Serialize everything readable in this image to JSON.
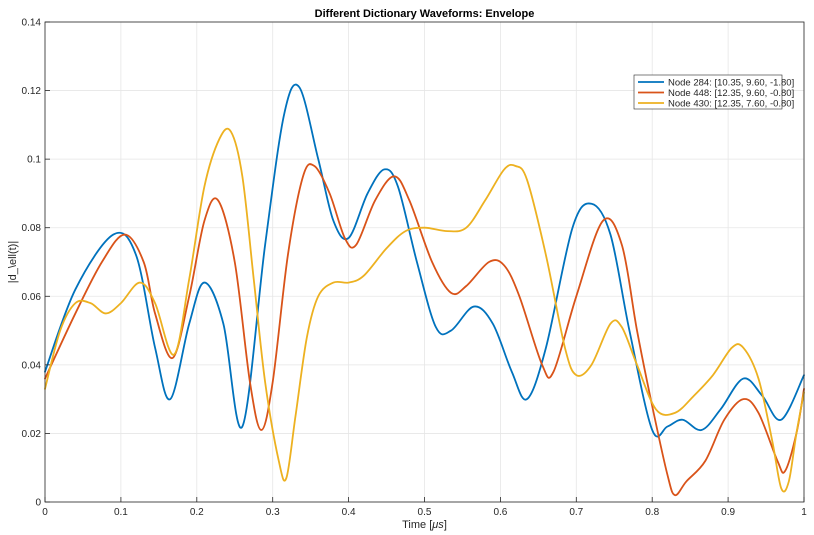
{
  "chart_data": {
    "type": "line",
    "title": "Different Dictionary Waveforms: Envelope",
    "xlabel_prefix": "Time [",
    "xlabel_unit": "μs",
    "xlabel_suffix": "]",
    "ylabel": "|d_\\ell(t)|",
    "xlim": [
      0,
      1
    ],
    "ylim": [
      0,
      0.14
    ],
    "xticks": [
      0,
      0.1,
      0.2,
      0.3,
      0.4,
      0.5,
      0.6,
      0.7,
      0.8,
      0.9,
      1
    ],
    "xtick_labels": [
      "0",
      "0.1",
      "0.2",
      "0.3",
      "0.4",
      "0.5",
      "0.6",
      "0.7",
      "0.8",
      "0.9",
      "1"
    ],
    "yticks": [
      0,
      0.02,
      0.04,
      0.06,
      0.08,
      0.1,
      0.12,
      0.14
    ],
    "ytick_labels": [
      "0",
      "0.02",
      "0.04",
      "0.06",
      "0.08",
      "0.1",
      "0.12",
      "0.14"
    ],
    "grid": true,
    "legend_position": "top-right",
    "series": [
      {
        "name": "Node 284: [10.35, 9.60, -1.80]",
        "color": "#0072BD",
        "points": [
          [
            0,
            0.038
          ],
          [
            0.04,
            0.062
          ],
          [
            0.09,
            0.078
          ],
          [
            0.12,
            0.072
          ],
          [
            0.145,
            0.045
          ],
          [
            0.165,
            0.03
          ],
          [
            0.19,
            0.052
          ],
          [
            0.21,
            0.064
          ],
          [
            0.235,
            0.052
          ],
          [
            0.26,
            0.022
          ],
          [
            0.29,
            0.075
          ],
          [
            0.315,
            0.113
          ],
          [
            0.335,
            0.121
          ],
          [
            0.36,
            0.1
          ],
          [
            0.38,
            0.082
          ],
          [
            0.4,
            0.077
          ],
          [
            0.425,
            0.09
          ],
          [
            0.447,
            0.097
          ],
          [
            0.465,
            0.092
          ],
          [
            0.49,
            0.07
          ],
          [
            0.515,
            0.051
          ],
          [
            0.535,
            0.05
          ],
          [
            0.565,
            0.057
          ],
          [
            0.59,
            0.052
          ],
          [
            0.615,
            0.038
          ],
          [
            0.635,
            0.03
          ],
          [
            0.66,
            0.045
          ],
          [
            0.695,
            0.08
          ],
          [
            0.72,
            0.087
          ],
          [
            0.745,
            0.078
          ],
          [
            0.77,
            0.05
          ],
          [
            0.8,
            0.021
          ],
          [
            0.82,
            0.022
          ],
          [
            0.84,
            0.024
          ],
          [
            0.865,
            0.021
          ],
          [
            0.89,
            0.027
          ],
          [
            0.92,
            0.036
          ],
          [
            0.945,
            0.031
          ],
          [
            0.97,
            0.024
          ],
          [
            1.0,
            0.037
          ]
        ]
      },
      {
        "name": "Node 448: [12.35, 9.60, -0.80]",
        "color": "#D95319",
        "points": [
          [
            0,
            0.036
          ],
          [
            0.04,
            0.055
          ],
          [
            0.075,
            0.07
          ],
          [
            0.105,
            0.078
          ],
          [
            0.13,
            0.07
          ],
          [
            0.145,
            0.055
          ],
          [
            0.168,
            0.042
          ],
          [
            0.19,
            0.06
          ],
          [
            0.21,
            0.082
          ],
          [
            0.228,
            0.088
          ],
          [
            0.25,
            0.07
          ],
          [
            0.27,
            0.035
          ],
          [
            0.285,
            0.021
          ],
          [
            0.3,
            0.035
          ],
          [
            0.32,
            0.072
          ],
          [
            0.34,
            0.095
          ],
          [
            0.355,
            0.098
          ],
          [
            0.375,
            0.09
          ],
          [
            0.395,
            0.077
          ],
          [
            0.41,
            0.075
          ],
          [
            0.435,
            0.088
          ],
          [
            0.46,
            0.095
          ],
          [
            0.48,
            0.088
          ],
          [
            0.51,
            0.07
          ],
          [
            0.535,
            0.061
          ],
          [
            0.555,
            0.063
          ],
          [
            0.585,
            0.07
          ],
          [
            0.605,
            0.069
          ],
          [
            0.625,
            0.06
          ],
          [
            0.655,
            0.04
          ],
          [
            0.67,
            0.038
          ],
          [
            0.7,
            0.06
          ],
          [
            0.735,
            0.082
          ],
          [
            0.76,
            0.075
          ],
          [
            0.78,
            0.05
          ],
          [
            0.8,
            0.028
          ],
          [
            0.82,
            0.008
          ],
          [
            0.83,
            0.002
          ],
          [
            0.845,
            0.006
          ],
          [
            0.87,
            0.012
          ],
          [
            0.895,
            0.024
          ],
          [
            0.92,
            0.03
          ],
          [
            0.94,
            0.026
          ],
          [
            0.965,
            0.012
          ],
          [
            0.975,
            0.009
          ],
          [
            0.99,
            0.02
          ],
          [
            1.0,
            0.033
          ]
        ]
      },
      {
        "name": "Node 430: [12.35, 7.60, -0.80]",
        "color": "#EDB120",
        "points": [
          [
            0,
            0.033
          ],
          [
            0.02,
            0.05
          ],
          [
            0.04,
            0.058
          ],
          [
            0.06,
            0.058
          ],
          [
            0.08,
            0.055
          ],
          [
            0.1,
            0.058
          ],
          [
            0.125,
            0.064
          ],
          [
            0.145,
            0.058
          ],
          [
            0.17,
            0.043
          ],
          [
            0.19,
            0.065
          ],
          [
            0.21,
            0.092
          ],
          [
            0.23,
            0.106
          ],
          [
            0.245,
            0.108
          ],
          [
            0.26,
            0.095
          ],
          [
            0.275,
            0.065
          ],
          [
            0.29,
            0.035
          ],
          [
            0.308,
            0.012
          ],
          [
            0.318,
            0.007
          ],
          [
            0.33,
            0.025
          ],
          [
            0.345,
            0.048
          ],
          [
            0.36,
            0.06
          ],
          [
            0.38,
            0.064
          ],
          [
            0.4,
            0.064
          ],
          [
            0.42,
            0.066
          ],
          [
            0.45,
            0.074
          ],
          [
            0.475,
            0.079
          ],
          [
            0.5,
            0.08
          ],
          [
            0.53,
            0.079
          ],
          [
            0.555,
            0.08
          ],
          [
            0.58,
            0.088
          ],
          [
            0.605,
            0.097
          ],
          [
            0.62,
            0.098
          ],
          [
            0.635,
            0.094
          ],
          [
            0.66,
            0.072
          ],
          [
            0.685,
            0.045
          ],
          [
            0.7,
            0.037
          ],
          [
            0.72,
            0.04
          ],
          [
            0.745,
            0.052
          ],
          [
            0.76,
            0.051
          ],
          [
            0.78,
            0.04
          ],
          [
            0.805,
            0.027
          ],
          [
            0.83,
            0.026
          ],
          [
            0.855,
            0.031
          ],
          [
            0.88,
            0.037
          ],
          [
            0.905,
            0.045
          ],
          [
            0.92,
            0.045
          ],
          [
            0.94,
            0.036
          ],
          [
            0.958,
            0.018
          ],
          [
            0.97,
            0.004
          ],
          [
            0.98,
            0.006
          ],
          [
            0.99,
            0.02
          ],
          [
            1.0,
            0.032
          ]
        ]
      }
    ]
  }
}
